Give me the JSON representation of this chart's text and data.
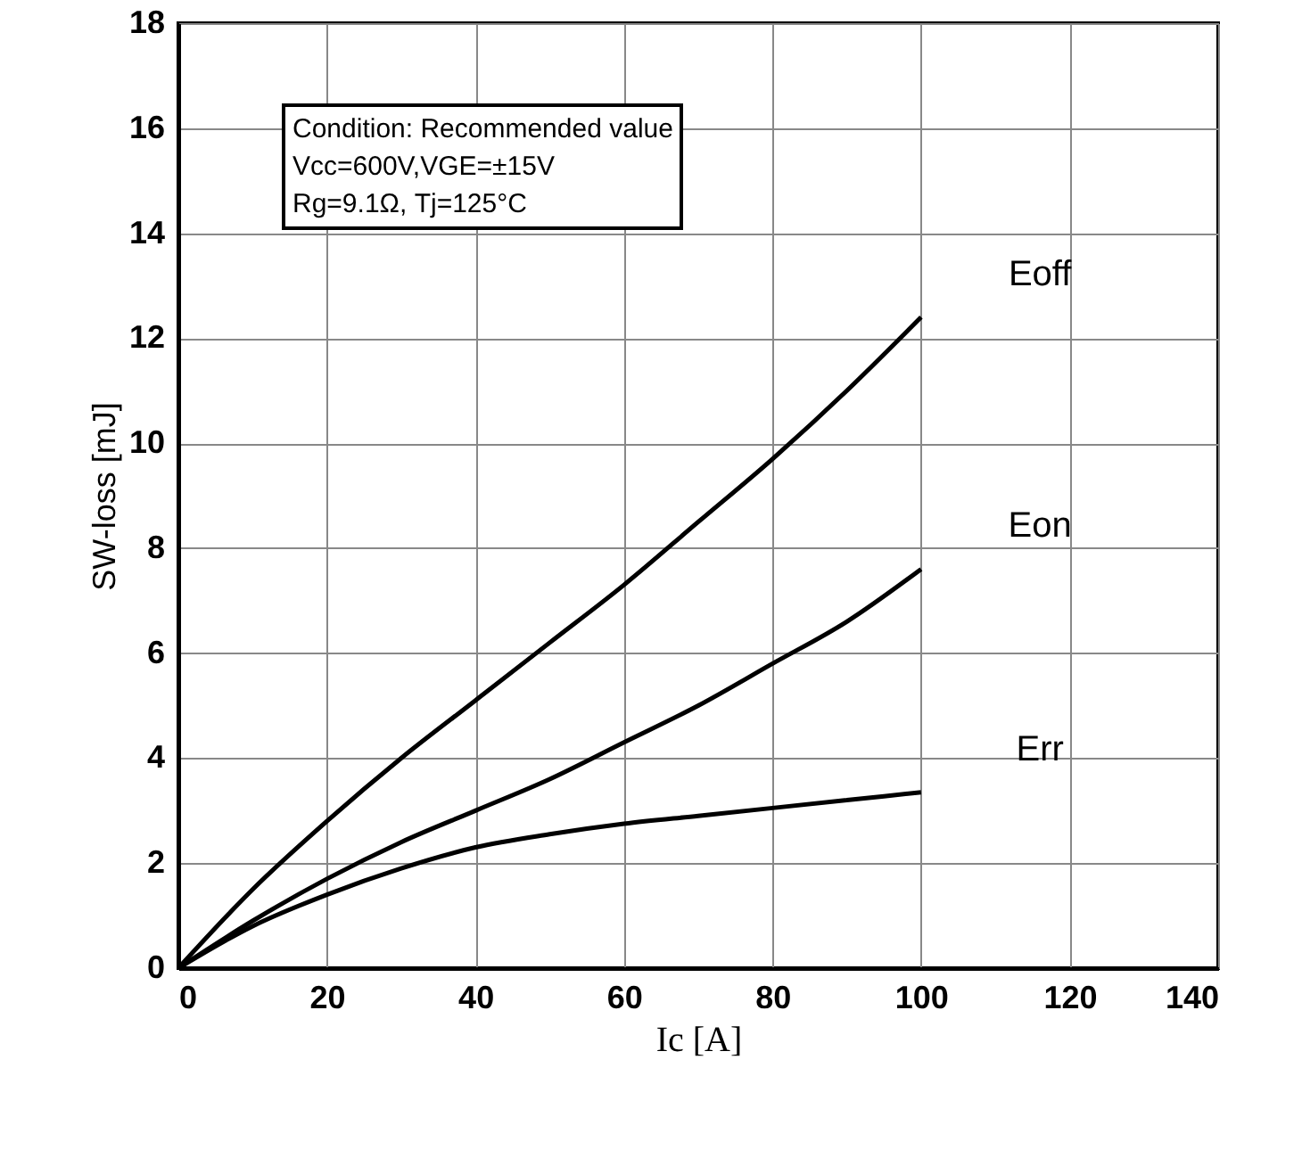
{
  "chart_data": {
    "type": "line",
    "xlabel": "Ic [A]",
    "ylabel": "SW-loss [mJ]",
    "annotations": [
      "Condition: Recommended value",
      "Vcc=600V,VGE=±15V",
      "Rg=9.1Ω, Tj=125°C"
    ],
    "x": [
      0,
      10,
      20,
      30,
      40,
      50,
      60,
      70,
      80,
      90,
      100
    ],
    "series": [
      {
        "name": "Eoff",
        "color": "#000000",
        "values": [
          0,
          1.5,
          2.8,
          4.0,
          5.1,
          6.2,
          7.3,
          8.5,
          9.7,
          11.0,
          12.4
        ]
      },
      {
        "name": "Eon",
        "color": "#000000",
        "values": [
          0,
          0.9,
          1.7,
          2.4,
          3.0,
          3.6,
          4.3,
          5.0,
          5.8,
          6.6,
          7.6
        ]
      },
      {
        "name": "Err",
        "color": "#000000",
        "values": [
          0,
          0.8,
          1.4,
          1.9,
          2.3,
          2.55,
          2.75,
          2.9,
          3.05,
          3.2,
          3.35
        ]
      }
    ],
    "xlim": [
      0,
      140
    ],
    "xticks": [
      0,
      20,
      40,
      60,
      80,
      100,
      120,
      140
    ],
    "ylim": [
      0,
      18
    ],
    "yticks": [
      0,
      2,
      4,
      6,
      8,
      10,
      12,
      14,
      16,
      18
    ],
    "grid": true,
    "line_style": "solid",
    "marker": "none"
  }
}
